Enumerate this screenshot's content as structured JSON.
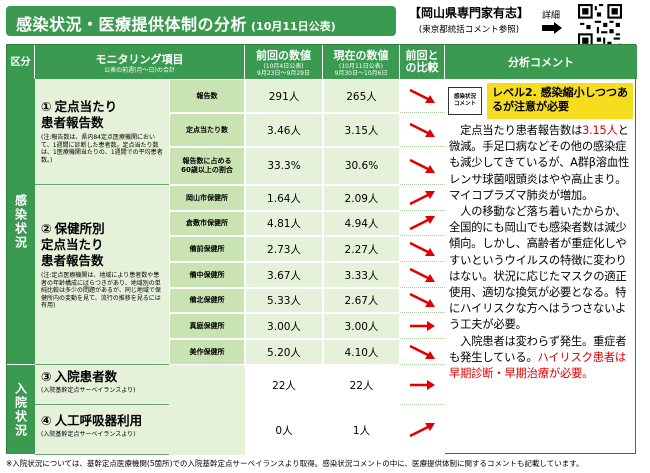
{
  "header": {
    "title": "感染状況・医療提供体制の分析",
    "date": "(10月11日公表)",
    "expert_main": "【岡山県専門家有志】",
    "expert_sub": "(東京都統括コメント参照)",
    "detail_label": "詳細"
  },
  "columns": {
    "kubun": "区分",
    "item": "モニタリング項目",
    "item_sub": "公表の前週(月～日)の合計",
    "prev": "前回の数値",
    "prev_sub1": "(10月4日公表)",
    "prev_sub2": "9月23日～9月29日",
    "curr": "現在の数値",
    "curr_sub1": "(10月11日公表)",
    "curr_sub2": "9月30日～10月6日",
    "compare": "前回と\nの比較",
    "comment": "分析コメント"
  },
  "sections": {
    "infection": "感染状況",
    "hospital": "入院状況"
  },
  "categories": {
    "c1_num": "①",
    "c1_title": "定点当たり\n患者報告数",
    "c1_note": "(注:報告数は、県内84定点医療機関において、1週間に診断した患者数。定点当たり数は、1医療機関当たりの、1週間での平均患者数。)",
    "c2_num": "②",
    "c2_title": "保健所別\n定点当たり\n患者報告数",
    "c2_note": "(注:定点医療機関は、地域により患者数や患者の年齢構成にばらつきがあり、地域別の単純比較は多少の問題があるが、同じ地域で保健所内の変動を見て、流行の推移を見るには有用)",
    "c3_num": "③",
    "c3_title": "入院患者数",
    "c3_note": "(入院基幹定点サーベイランスより)",
    "c4_num": "④",
    "c4_title": "人工呼吸器利用",
    "c4_note": "(入院基幹定点サーベイランスより)"
  },
  "rows": [
    {
      "label": "報告数",
      "prev": "291人",
      "curr": "265人"
    },
    {
      "label": "定点当たり数",
      "prev": "3.46人",
      "curr": "3.15人"
    },
    {
      "label": "報告数に占める\n60歳以上の割合",
      "prev": "33.3%",
      "curr": "30.6%"
    },
    {
      "label": "岡山市保健所",
      "prev": "1.64人",
      "curr": "2.09人"
    },
    {
      "label": "倉敷市保健所",
      "prev": "4.81人",
      "curr": "4.94人"
    },
    {
      "label": "備前保健所",
      "prev": "2.73人",
      "curr": "2.27人"
    },
    {
      "label": "備中保健所",
      "prev": "3.67人",
      "curr": "3.33人"
    },
    {
      "label": "備北保健所",
      "prev": "5.33人",
      "curr": "2.67人"
    },
    {
      "label": "真庭保健所",
      "prev": "3.00人",
      "curr": "3.00人"
    },
    {
      "label": "美作保健所",
      "prev": "5.20人",
      "curr": "4.10人"
    }
  ],
  "hospital_rows": [
    {
      "prev": "22人",
      "curr": "22人"
    },
    {
      "prev": "0人",
      "curr": "1人"
    }
  ],
  "comment": {
    "level_tag": "感染状況\nコメント",
    "level_text": "レベル2. 感染縮小しつつあるが注意が必要",
    "p1_a": "　定点当たり患者報告数は",
    "p1_red": "3.15人",
    "p1_b": "と微減。手足口病などその他の感染症も減少してきているが、A群β溶血性レンサ球菌咽頭炎はやや高止まり。マイコプラズマ肺炎が増加。",
    "p2": "　人の移動など落ち着いたからか、全国的にも岡山でも感染者数は減少傾向。しかし、高齢者が重症化しやすいというウイルスの特徴に変わりはない。状況に応じたマスクの適正使用、適切な換気が必要となる。特にハイリスクな方へはうつさないよう工夫が必要。",
    "p3_a": "　入院患者は変わらず発生。重症者も発生している。",
    "p3_red": "ハイリスク患者は早期診断・早期治療が必要。"
  },
  "footer": "※入院状況については、基幹定点医療機関(5箇所)での入院基幹定点サーベイランスより取得。感染状況コメントの中に、医療提供体制に関するコメントも記載しています。",
  "colors": {
    "green": "#3a9a4f",
    "light": "#e6f1d9",
    "yellow": "#f5dd1e",
    "arrow": "#e00000"
  },
  "compare_icons": [
    "arrow-down-right",
    "arrow-down-right",
    "arrow-down-right",
    "arrow-up-right",
    "arrow-up-right",
    "arrow-down-right",
    "arrow-down-right",
    "arrow-down-right",
    "arrow-right",
    "arrow-down-right",
    "arrow-right",
    "arrow-up-right"
  ]
}
